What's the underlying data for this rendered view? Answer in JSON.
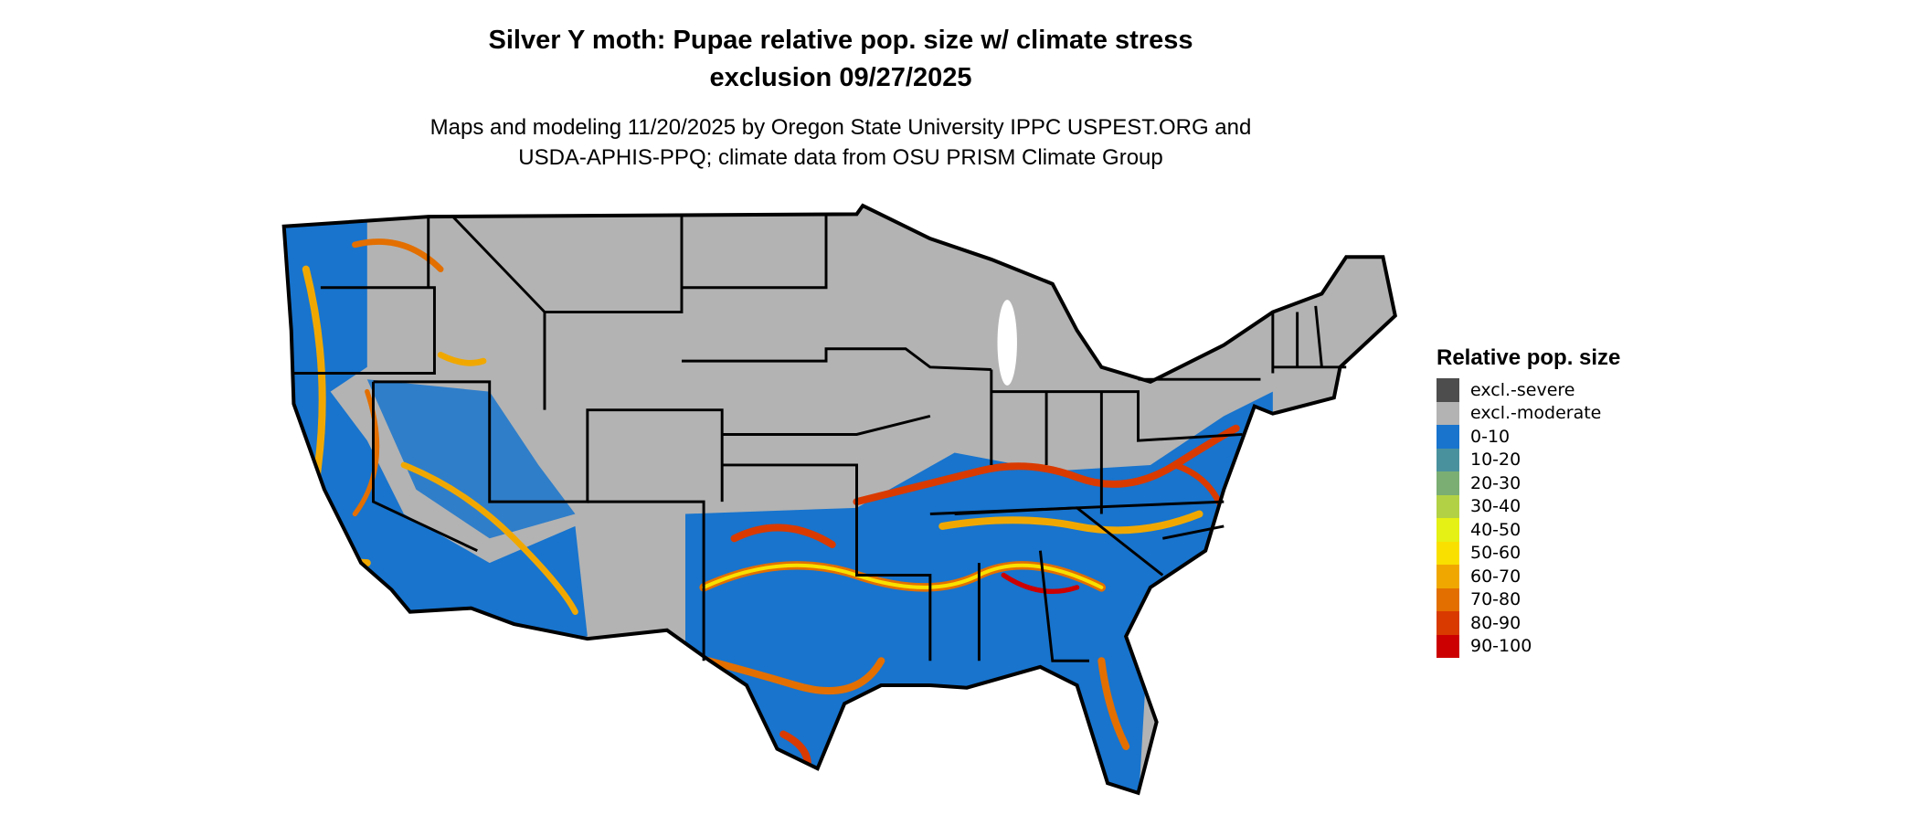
{
  "title": {
    "line1": "Silver Y moth: Pupae relative pop. size w/ climate stress",
    "line2": "exclusion 09/27/2025"
  },
  "subtitle": {
    "line1": "Maps and modeling 11/20/2025 by Oregon State University IPPC USPEST.ORG and",
    "line2": "USDA-APHIS-PPQ; climate data from OSU PRISM Climate Group"
  },
  "map": {
    "region": "Contiguous United States",
    "excluded_color": "#b3b3b3",
    "low_color": "#1874cd",
    "state_border_color": "#000000"
  },
  "legend": {
    "title": "Relative pop. size",
    "items": [
      {
        "label": "excl.-severe",
        "color": "#4d4d4d"
      },
      {
        "label": "excl.-moderate",
        "color": "#b3b3b3"
      },
      {
        "label": "0-10",
        "color": "#1874cd"
      },
      {
        "label": "10-20",
        "color": "#4a919e"
      },
      {
        "label": "20-30",
        "color": "#7aae73"
      },
      {
        "label": "30-40",
        "color": "#b2d145"
      },
      {
        "label": "40-50",
        "color": "#e5f014"
      },
      {
        "label": "50-60",
        "color": "#f9e000"
      },
      {
        "label": "60-70",
        "color": "#f0a800"
      },
      {
        "label": "70-80",
        "color": "#e36f00"
      },
      {
        "label": "80-90",
        "color": "#d93a00"
      },
      {
        "label": "90-100",
        "color": "#cc0000"
      }
    ]
  }
}
